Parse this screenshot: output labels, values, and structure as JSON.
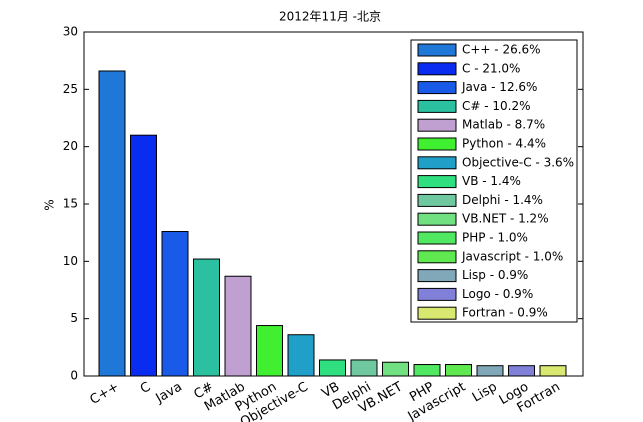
{
  "chart_data": {
    "type": "bar",
    "title": "2012年11月 -北京",
    "y_label": "%",
    "categories": [
      "C++",
      "C",
      "Java",
      "C#",
      "Matlab",
      "Python",
      "Objective-C",
      "VB",
      "Delphi",
      "VB.NET",
      "PHP",
      "Javascript",
      "Lisp",
      "Logo",
      "Fortran"
    ],
    "values": [
      26.6,
      21.0,
      12.6,
      10.2,
      8.7,
      4.4,
      3.6,
      1.4,
      1.4,
      1.2,
      1.0,
      1.0,
      0.9,
      0.9,
      0.9
    ],
    "colors": [
      "#1f78d8",
      "#0a2cf0",
      "#1a5ae8",
      "#2ac0a0",
      "#c0a0d0",
      "#40f030",
      "#20a0c8",
      "#30e080",
      "#70c8a0",
      "#70e080",
      "#50e860",
      "#60e850",
      "#80a8b8",
      "#8080d8",
      "#d8e870"
    ],
    "legend": [
      "C++ - 26.6%",
      "C - 21.0%",
      "Java - 12.6%",
      "C# - 10.2%",
      "Matlab - 8.7%",
      "Python - 4.4%",
      "Objective-C - 3.6%",
      "VB - 1.4%",
      "Delphi - 1.4%",
      "VB.NET - 1.2%",
      "PHP - 1.0%",
      "Javascript - 1.0%",
      "Lisp - 0.9%",
      "Logo - 0.9%",
      "Fortran - 0.9%"
    ],
    "ylim": [
      0,
      30
    ],
    "yticks": [
      0,
      5,
      10,
      15,
      20,
      25,
      30
    ]
  }
}
